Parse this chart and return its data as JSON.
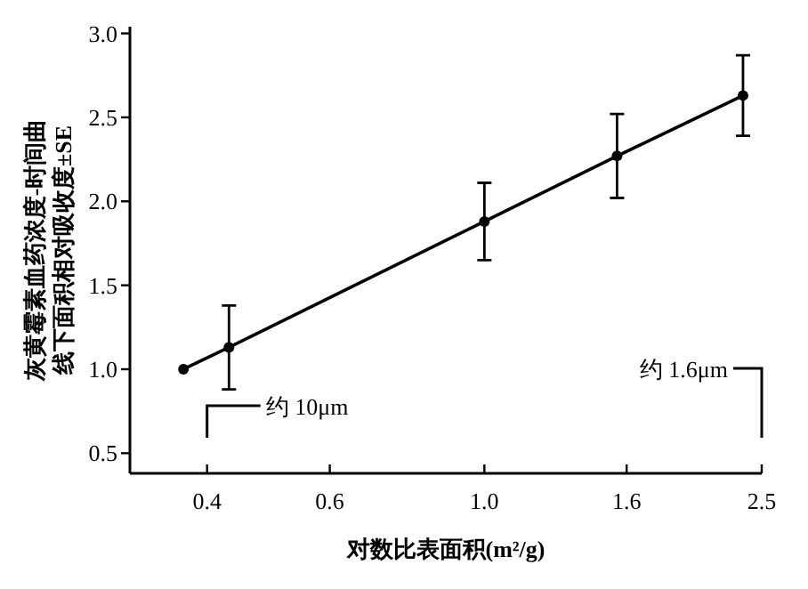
{
  "chart_data": {
    "type": "line",
    "xlabel": "对数比表面积(m²/g)",
    "ylabel": "灰黄霉素血药浓度-时间曲线下面积相对吸收度±SE",
    "x": [
      0.37,
      0.43,
      1.0,
      1.55,
      2.35
    ],
    "series": [
      {
        "color": "#000000",
        "values": [
          1.0,
          1.13,
          1.88,
          2.27,
          2.63
        ],
        "errors": [
          null,
          0.25,
          0.23,
          0.25,
          0.24
        ]
      }
    ],
    "log": "x",
    "marker": "circle",
    "line_style": "solid",
    "xlim": [
      0.31,
      2.5
    ],
    "ylim": [
      0.38,
      3.04
    ],
    "xticks": [
      0.4,
      0.6,
      {
        "value": 1,
        "label": "1.0"
      },
      1.6,
      2.5
    ],
    "yticks": [
      0.5,
      {
        "value": 1,
        "label": "1.0"
      },
      1.5,
      {
        "value": 2,
        "label": "2.0"
      },
      2.5,
      {
        "value": 3,
        "label": "3.0"
      }
    ],
    "annotations": [
      "约 10μm",
      "约 1.6μm"
    ]
  }
}
